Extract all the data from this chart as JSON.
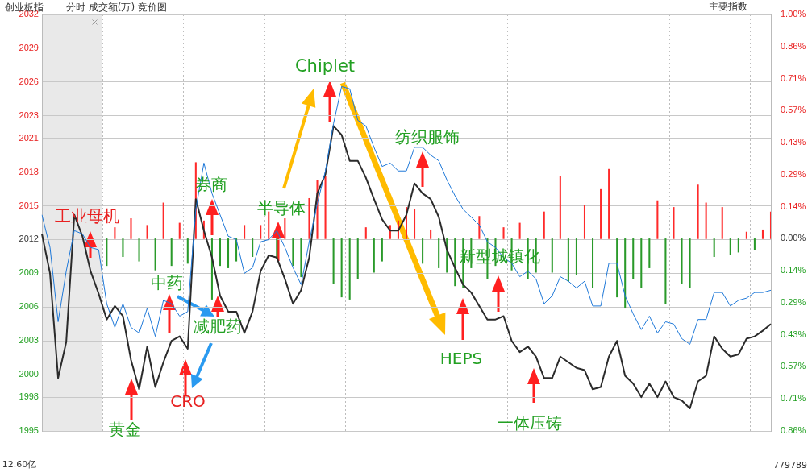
{
  "chart_data": {
    "type": "line",
    "title": "创业板指",
    "subtitle": "分时 成交额(万) 竞价图",
    "annotations": [
      "工业母机",
      "黄金",
      "中药",
      "CRO",
      "减肥药",
      "券商",
      "半导体",
      "Chiplet",
      "纺织服饰",
      "HEPS",
      "新型城镇化",
      "一体压铸",
      "主要指数",
      "12.60亿",
      "779789"
    ],
    "categories": [
      null,
      null,
      null,
      null,
      null,
      null,
      null,
      null,
      null,
      null,
      null,
      null,
      null,
      null,
      null,
      null,
      null,
      null,
      null,
      null,
      null,
      null,
      null,
      null,
      null,
      null,
      null,
      null,
      null,
      null,
      null,
      null,
      null,
      null,
      null,
      null,
      null,
      null,
      null,
      null,
      null,
      null,
      null,
      null,
      null,
      null,
      null,
      null,
      null,
      null,
      null,
      null,
      null,
      null,
      null,
      null,
      null,
      null,
      null,
      null,
      null,
      null,
      null,
      null,
      null,
      null,
      null,
      null,
      null,
      null,
      null,
      null,
      null,
      null,
      null,
      null,
      null,
      null,
      null,
      null,
      null,
      null,
      null,
      null,
      null,
      null,
      null,
      null,
      null,
      null,
      null
    ],
    "series": [
      {
        "type": "bar",
        "axis": "y2",
        "values": [
          null,
          null,
          null,
          null,
          null,
          null,
          null,
          null,
          -0.12,
          0.05,
          -0.08,
          0.09,
          -0.1,
          0.06,
          -0.14,
          0.16,
          -0.12,
          0.07,
          -0.11,
          0.34,
          0.08,
          -0.27,
          -0.12,
          -0.13,
          -0.1,
          0.06,
          -0.08,
          0.06,
          0.12,
          -0.09,
          0.09,
          -0.12,
          -0.17,
          0.18,
          0.26,
          0.28,
          -0.2,
          -0.26,
          -0.27,
          -0.18,
          0.05,
          -0.15,
          -0.1,
          0.06,
          0.08,
          0.14,
          0.13,
          -0.11,
          0.04,
          -0.13,
          -0.15,
          -0.21,
          -0.22,
          -0.13,
          0.1,
          -0.18,
          -0.12,
          0.05,
          -0.14,
          0.07,
          -0.18,
          -0.15,
          0.12,
          -0.15,
          0.28,
          -0.19,
          -0.16,
          0.15,
          -0.22,
          0.22,
          0.31,
          -0.26,
          -0.31,
          -0.18,
          -0.22,
          -0.13,
          0.17,
          -0.29,
          0.14,
          -0.2,
          -0.22,
          0.24,
          0.16,
          -0.08,
          0.14,
          -0.07,
          -0.06,
          0.03,
          -0.05,
          0.04,
          0.12
        ],
        "colors": [
          "#2a9a2a",
          "#2a9a2a",
          "#2a9a2a",
          "#2a9a2a",
          "#2a9a2a",
          "#2a9a2a",
          "#2a9a2a",
          "#2a9a2a",
          "#2a9a2a",
          "#ff2a2a",
          "#2a9a2a",
          "#ff2a2a",
          "#2a9a2a",
          "#ff2a2a",
          "#2a9a2a",
          "#ff2a2a",
          "#2a9a2a",
          "#ff2a2a",
          "#2a9a2a",
          "#ff2a2a",
          "#ff2a2a",
          "#2a9a2a",
          "#2a9a2a",
          "#2a9a2a",
          "#2a9a2a",
          "#ff2a2a",
          "#2a9a2a",
          "#ff2a2a",
          "#ff2a2a",
          "#2a9a2a",
          "#ff2a2a",
          "#2a9a2a",
          "#2a9a2a",
          "#ff2a2a",
          "#ff2a2a",
          "#ff2a2a",
          "#2a9a2a",
          "#2a9a2a",
          "#2a9a2a",
          "#2a9a2a",
          "#ff2a2a",
          "#2a9a2a",
          "#2a9a2a",
          "#ff2a2a",
          "#ff2a2a",
          "#ff2a2a",
          "#ff2a2a",
          "#2a9a2a",
          "#ff2a2a",
          "#2a9a2a",
          "#2a9a2a",
          "#2a9a2a",
          "#2a9a2a",
          "#2a9a2a",
          "#ff2a2a",
          "#2a9a2a",
          "#2a9a2a",
          "#ff2a2a",
          "#2a9a2a",
          "#ff2a2a",
          "#2a9a2a",
          "#2a9a2a",
          "#ff2a2a",
          "#2a9a2a",
          "#ff2a2a",
          "#2a9a2a",
          "#2a9a2a",
          "#ff2a2a",
          "#2a9a2a",
          "#ff2a2a",
          "#ff2a2a",
          "#2a9a2a",
          "#2a9a2a",
          "#2a9a2a",
          "#2a9a2a",
          "#2a9a2a",
          "#ff2a2a",
          "#2a9a2a",
          "#ff2a2a",
          "#2a9a2a",
          "#2a9a2a",
          "#ff2a2a",
          "#ff2a2a",
          "#2a9a2a",
          "#ff2a2a",
          "#2a9a2a",
          "#2a9a2a",
          "#ff2a2a",
          "#2a9a2a",
          "#ff2a2a",
          "#ff2a2a"
        ]
      },
      {
        "color": "#1e78d8",
        "values": [
          2014.2,
          2011.3,
          2004.7,
          2009.2,
          2012.8,
          2012.5,
          2011.3,
          2011.1,
          2006.3,
          2004.2,
          2006.3,
          2004.2,
          2003.7,
          2005.9,
          2003.4,
          2006.6,
          2006.3,
          2005.2,
          2005.6,
          2014.7,
          2018.8,
          2016.1,
          2014.2,
          2012.3,
          2012.0,
          2009.0,
          2009.5,
          2011.8,
          2012.0,
          2012.8,
          2011.3,
          2009.5,
          2008.0,
          2011.8,
          2015.2,
          2018.1,
          2022.3,
          2025.6,
          2025.4,
          2022.6,
          2022.1,
          2020.2,
          2018.5,
          2018.8,
          2018.1,
          2018.1,
          2020.2,
          2020.2,
          2019.5,
          2019.0,
          2017.3,
          2015.9,
          2014.7,
          2014.0,
          2013.3,
          2011.8,
          2011.3,
          2010.4,
          2009.9,
          2008.7,
          2009.2,
          2008.5,
          2006.3,
          2007.0,
          2008.7,
          2008.3,
          2007.7,
          2008.3,
          2006.1,
          2006.1,
          2009.9,
          2009.9,
          2007.0,
          2005.4,
          2004.0,
          2005.2,
          2003.7,
          2004.7,
          2004.5,
          2003.2,
          2002.7,
          2004.9,
          2004.9,
          2007.3,
          2007.3,
          2006.1,
          2006.6,
          2006.8,
          2007.3,
          2007.3,
          2007.5
        ]
      },
      {
        "color": "#2b2b2b",
        "values": [
          2012.5,
          2009.0,
          1999.7,
          2002.9,
          2014.2,
          2012.3,
          2009.2,
          2007.2,
          2004.9,
          2006.1,
          2005.2,
          2001.3,
          1998.7,
          2002.5,
          1998.9,
          2001.1,
          2003.0,
          2003.4,
          2002.3,
          2015.6,
          2012.8,
          2010.4,
          2007.0,
          2005.6,
          2005.6,
          2003.7,
          2005.6,
          2009.2,
          2010.6,
          2010.4,
          2008.5,
          2006.3,
          2007.5,
          2010.4,
          2016.1,
          2017.8,
          2022.1,
          2021.3,
          2019.0,
          2019.0,
          2017.5,
          2015.6,
          2013.8,
          2012.8,
          2012.8,
          2014.2,
          2017.0,
          2016.1,
          2015.6,
          2014.0,
          2011.1,
          2009.5,
          2008.0,
          2007.3,
          2006.1,
          2004.9,
          2004.9,
          2005.2,
          2003.0,
          2002.0,
          2002.5,
          2001.6,
          1999.7,
          1999.7,
          2001.6,
          2001.1,
          2000.6,
          2000.4,
          1998.7,
          1998.9,
          2001.6,
          2003.0,
          1999.9,
          1999.2,
          1998.0,
          1999.2,
          1998.0,
          1999.4,
          1998.0,
          1997.7,
          1997.0,
          1999.4,
          1999.9,
          2003.4,
          2002.3,
          2001.6,
          2001.8,
          2003.2,
          2003.4,
          2003.9,
          2004.5
        ]
      }
    ],
    "ylim": [
      1995,
      2032
    ],
    "yticks": [
      1995,
      1998,
      2000,
      2003,
      2006,
      2009,
      2012,
      2015,
      2018,
      2021,
      2023,
      2026,
      2029,
      2032
    ],
    "y2lim": [
      -0.857,
      1.0
    ],
    "y2ticks": [
      {
        "value": -0.857,
        "label": "0.86%"
      },
      {
        "value": -0.714,
        "label": "0.71%"
      },
      {
        "value": -0.571,
        "label": "0.57%"
      },
      {
        "value": -0.429,
        "label": "0.43%"
      },
      {
        "value": -0.286,
        "label": "0.29%"
      },
      {
        "value": -0.143,
        "label": "0.14%"
      },
      {
        "value": 0,
        "label": "0.00%"
      },
      {
        "value": 0.143,
        "label": "0.14%"
      },
      {
        "value": 0.286,
        "label": "0.29%"
      },
      {
        "value": 0.429,
        "label": "0.43%"
      },
      {
        "value": 0.571,
        "label": "0.57%"
      },
      {
        "value": 0.714,
        "label": "0.71%"
      },
      {
        "value": 0.857,
        "label": "0.86%"
      },
      {
        "value": 1.0,
        "label": "1.00%"
      }
    ],
    "grid": true
  }
}
